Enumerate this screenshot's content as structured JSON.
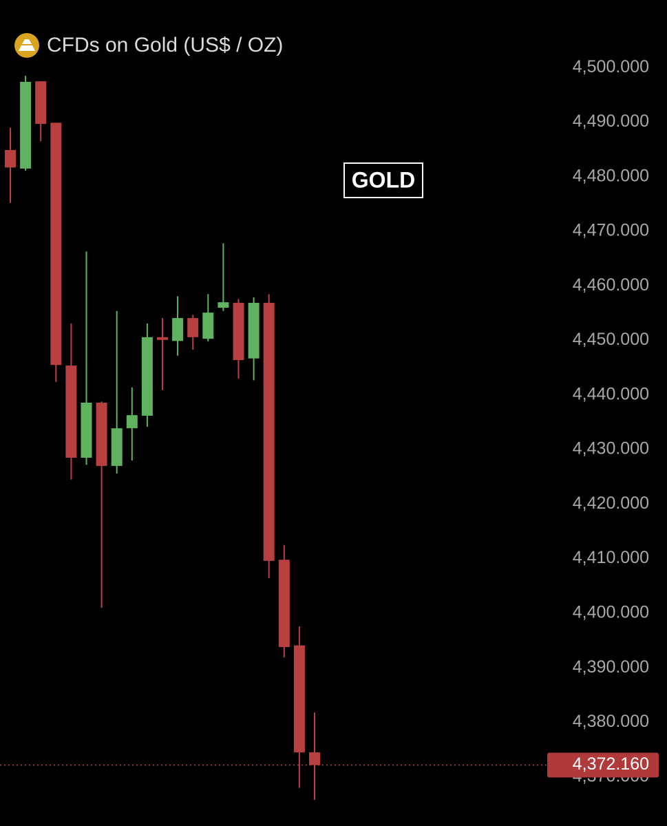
{
  "chart_data": {
    "type": "candlestick",
    "title": "CFDs on Gold (US$ / OZ)",
    "annotation": "GOLD",
    "up_color": "#5fb35f",
    "down_color": "#b84040",
    "ylim": [
      4361,
      4512.4
    ],
    "yticks": [
      {
        "value": 4370,
        "label": "4,370.000"
      },
      {
        "value": 4380,
        "label": "4,380.000"
      },
      {
        "value": 4390,
        "label": "4,390.000"
      },
      {
        "value": 4400,
        "label": "4,400.000"
      },
      {
        "value": 4410,
        "label": "4,410.000"
      },
      {
        "value": 4420,
        "label": "4,420.000"
      },
      {
        "value": 4430,
        "label": "4,430.000"
      },
      {
        "value": 4440,
        "label": "4,440.000"
      },
      {
        "value": 4450,
        "label": "4,450.000"
      },
      {
        "value": 4460,
        "label": "4,460.000"
      },
      {
        "value": 4470,
        "label": "4,470.000"
      },
      {
        "value": 4480,
        "label": "4,480.000"
      },
      {
        "value": 4490,
        "label": "4,490.000"
      },
      {
        "value": 4500,
        "label": "4,500.000"
      }
    ],
    "last_price": {
      "value": 4372.16,
      "label": "4,372.160"
    },
    "open": [
      4484.9,
      4481.5,
      4497.5,
      4489.9,
      4445.4,
      4428.5,
      4438.6,
      4427.0,
      4433.9,
      4436.2,
      4450.6,
      4449.9,
      4454.1,
      4450.3,
      4456.0,
      4456.9,
      4446.7,
      4456.9,
      4409.8,
      4394.1,
      4374.5
    ],
    "high": [
      4489.0,
      4498.5,
      4497.5,
      4489.9,
      4453.1,
      4466.3,
      4438.8,
      4455.4,
      4441.4,
      4453.1,
      4454.1,
      4458.1,
      4454.7,
      4458.5,
      4467.8,
      4457.6,
      4457.9,
      4458.5,
      4412.5,
      4397.6,
      4381.8
    ],
    "low": [
      4475.2,
      4481.1,
      4486.5,
      4442.4,
      4424.5,
      4427.2,
      4401.0,
      4425.6,
      4428.0,
      4434.2,
      4440.9,
      4447.2,
      4448.3,
      4449.8,
      4455.4,
      4443.0,
      4442.7,
      4406.4,
      4391.9,
      4368.0,
      4365.8
    ],
    "close": [
      4481.7,
      4497.4,
      4489.7,
      4445.5,
      4428.5,
      4438.6,
      4427.0,
      4433.9,
      4436.3,
      4450.6,
      4450.1,
      4454.1,
      4450.6,
      4455.1,
      4457.0,
      4446.4,
      4456.9,
      4409.6,
      4393.8,
      4374.5,
      4372.16
    ]
  }
}
